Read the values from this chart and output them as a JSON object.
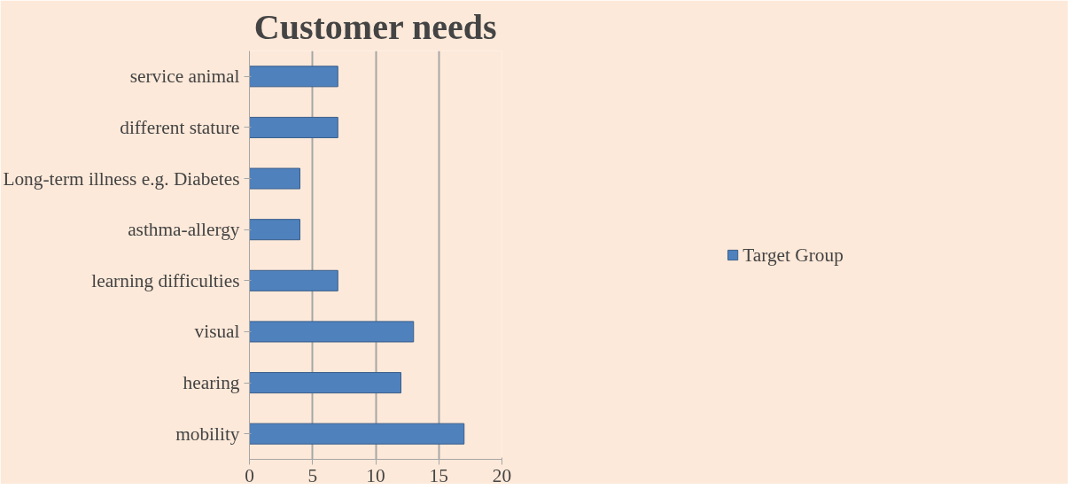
{
  "chart_data": {
    "type": "bar",
    "orientation": "horizontal",
    "title": "Customer needs",
    "categories": [
      "service animal",
      "different stature",
      "Long-term illness e.g. Diabetes",
      "asthma-allergy",
      "learning difficulties",
      "visual",
      "hearing",
      "mobility"
    ],
    "series": [
      {
        "name": "Target Group",
        "color": "#4f81bd",
        "values": [
          7,
          7,
          4,
          4,
          7,
          13,
          12,
          17
        ]
      }
    ],
    "xlim": [
      0,
      20
    ],
    "xticks": [
      0,
      5,
      10,
      15,
      20
    ],
    "grid": "x",
    "legend": "right"
  }
}
